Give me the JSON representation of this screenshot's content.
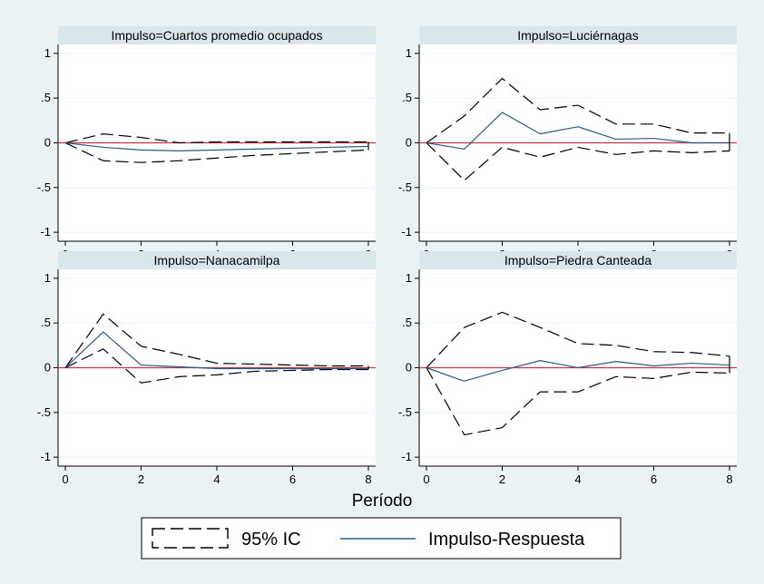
{
  "chart_data": {
    "type": "line",
    "x_title": "Período",
    "x": [
      0,
      1,
      2,
      3,
      4,
      5,
      6,
      7,
      8
    ],
    "x_ticks": [
      0,
      2,
      4,
      6,
      8
    ],
    "y_ticks": [
      1,
      0.5,
      0,
      -0.5,
      -1
    ],
    "y_tick_labels": [
      "1",
      ".5",
      "0",
      "-.5",
      "-1"
    ],
    "ylim": [
      -1.1,
      1.1
    ],
    "zero_line_color": "#c0344a",
    "irf_color": "#2b5a7e",
    "ci_color": "#000000",
    "legend": {
      "ci_label": "95% IC",
      "irf_label": "Impulso-Respuesta",
      "position": "bottom"
    },
    "panels": [
      {
        "title": "Impulso=Cuartos promedio ocupados",
        "irf": [
          0,
          -0.05,
          -0.08,
          -0.09,
          -0.08,
          -0.07,
          -0.06,
          -0.05,
          -0.04
        ],
        "upper": [
          0,
          0.1,
          0.06,
          0.0,
          0.01,
          0.01,
          0.01,
          0.01,
          0.01
        ],
        "lower": [
          0,
          -0.2,
          -0.22,
          -0.2,
          -0.17,
          -0.14,
          -0.12,
          -0.1,
          -0.08
        ]
      },
      {
        "title": "Impulso=Luciérnagas",
        "irf": [
          0,
          -0.07,
          0.34,
          0.1,
          0.18,
          0.04,
          0.05,
          0.0,
          0.0
        ],
        "upper": [
          0,
          0.3,
          0.72,
          0.37,
          0.42,
          0.21,
          0.21,
          0.11,
          0.11
        ],
        "lower": [
          0,
          -0.42,
          -0.05,
          -0.16,
          -0.05,
          -0.13,
          -0.09,
          -0.11,
          -0.09
        ]
      },
      {
        "title": "Impulso=Nanacamilpa",
        "irf": [
          0,
          0.4,
          0.03,
          0.01,
          -0.01,
          -0.01,
          -0.01,
          -0.01,
          -0.01
        ],
        "upper": [
          0,
          0.6,
          0.24,
          0.15,
          0.05,
          0.04,
          0.03,
          0.02,
          0.02
        ],
        "lower": [
          0,
          0.21,
          -0.17,
          -0.1,
          -0.08,
          -0.04,
          -0.03,
          -0.02,
          -0.02
        ]
      },
      {
        "title": "Impulso=Piedra Canteada",
        "irf": [
          0,
          -0.15,
          -0.03,
          0.08,
          0.0,
          0.07,
          0.02,
          0.05,
          0.03
        ],
        "upper": [
          0,
          0.45,
          0.62,
          0.45,
          0.27,
          0.25,
          0.18,
          0.17,
          0.13
        ],
        "lower": [
          0,
          -0.75,
          -0.67,
          -0.27,
          -0.27,
          -0.1,
          -0.12,
          -0.05,
          -0.06
        ]
      }
    ]
  }
}
